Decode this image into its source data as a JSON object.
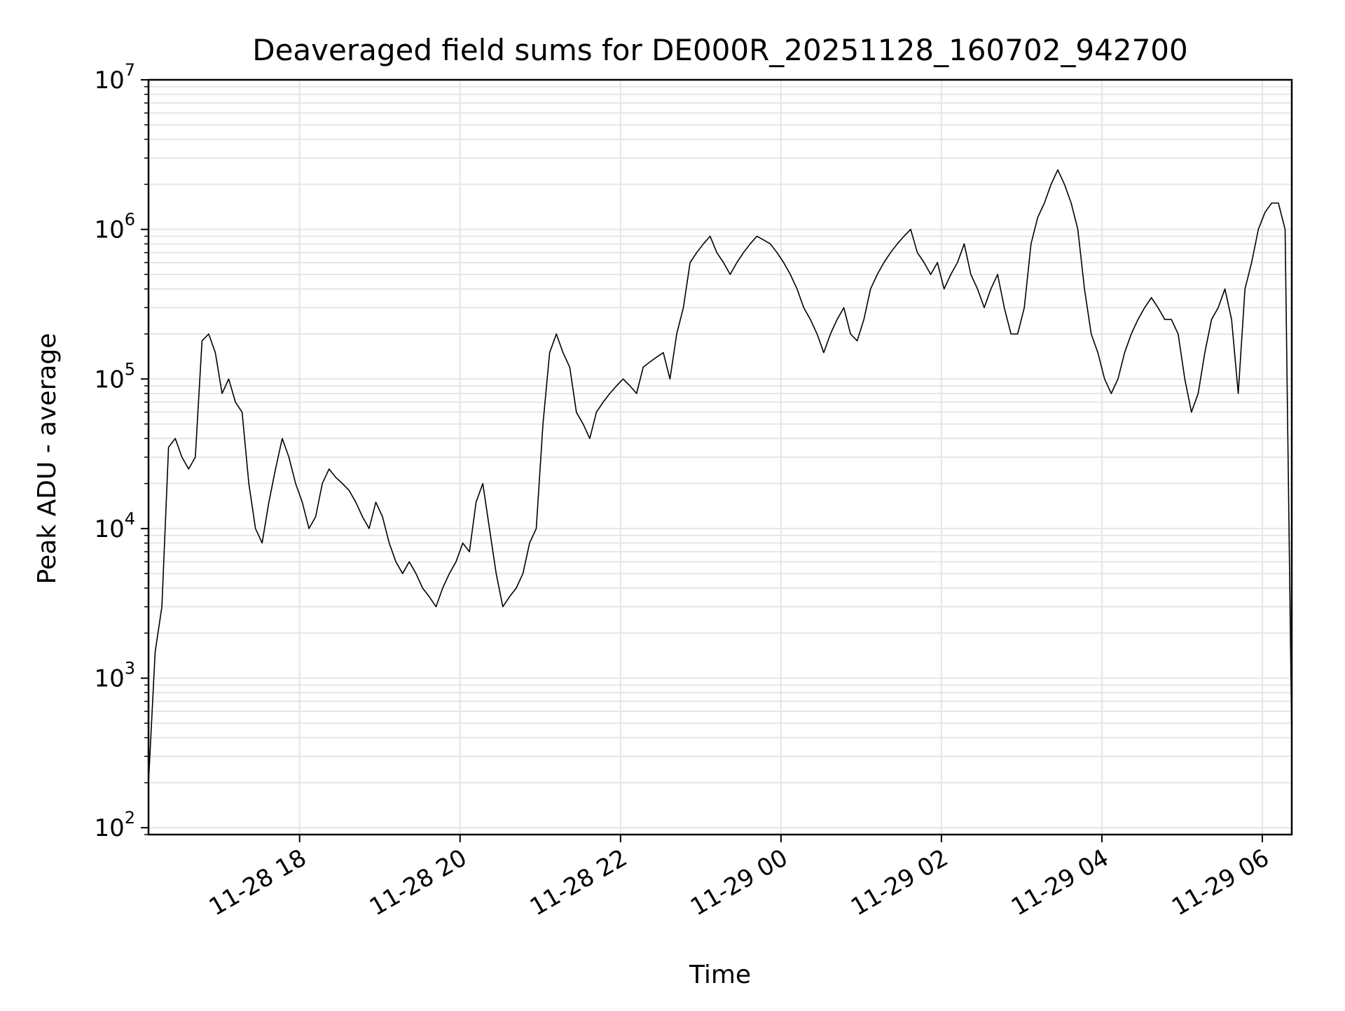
{
  "chart_data": {
    "type": "line",
    "title": "Deaveraged field sums for DE000R_20251128_160702_942700",
    "xlabel": "Time",
    "ylabel": "Peak ADU - average",
    "yscale": "log",
    "ylim": [
      90,
      10000000
    ],
    "xlim": [
      "2025-11-28 16:07",
      "2025-11-29 06:22"
    ],
    "grid": true,
    "line_color": "#000000",
    "grid_color": "#e6e6e6",
    "x_ticks": [
      {
        "t": "2025-11-28 18:00",
        "label": "11-28 18"
      },
      {
        "t": "2025-11-28 20:00",
        "label": "11-28 20"
      },
      {
        "t": "2025-11-28 22:00",
        "label": "11-28 22"
      },
      {
        "t": "2025-11-29 00:00",
        "label": "11-29 00"
      },
      {
        "t": "2025-11-29 02:00",
        "label": "11-29 02"
      },
      {
        "t": "2025-11-29 04:00",
        "label": "11-29 04"
      },
      {
        "t": "2025-11-29 06:00",
        "label": "11-29 06"
      }
    ],
    "y_ticks": [
      {
        "value": 100,
        "base": "10",
        "exp": "2"
      },
      {
        "value": 1000,
        "base": "10",
        "exp": "3"
      },
      {
        "value": 10000,
        "base": "10",
        "exp": "4"
      },
      {
        "value": 100000,
        "base": "10",
        "exp": "5"
      },
      {
        "value": 1000000,
        "base": "10",
        "exp": "6"
      },
      {
        "value": 10000000,
        "base": "10",
        "exp": "7"
      }
    ],
    "series": [
      {
        "x": [
          "2025-11-28 16:07",
          "2025-11-28 16:12",
          "2025-11-28 16:17",
          "2025-11-28 16:22",
          "2025-11-28 16:27",
          "2025-11-28 16:32",
          "2025-11-28 16:37",
          "2025-11-28 16:42",
          "2025-11-28 16:47",
          "2025-11-28 16:52",
          "2025-11-28 16:57",
          "2025-11-28 17:02",
          "2025-11-28 17:07",
          "2025-11-28 17:12",
          "2025-11-28 17:17",
          "2025-11-28 17:22",
          "2025-11-28 17:27",
          "2025-11-28 17:32",
          "2025-11-28 17:37",
          "2025-11-28 17:42",
          "2025-11-28 17:47",
          "2025-11-28 17:52",
          "2025-11-28 17:57",
          "2025-11-28 18:02",
          "2025-11-28 18:07",
          "2025-11-28 18:12",
          "2025-11-28 18:17",
          "2025-11-28 18:22",
          "2025-11-28 18:27",
          "2025-11-28 18:32",
          "2025-11-28 18:37",
          "2025-11-28 18:42",
          "2025-11-28 18:47",
          "2025-11-28 18:52",
          "2025-11-28 18:57",
          "2025-11-28 19:02",
          "2025-11-28 19:07",
          "2025-11-28 19:12",
          "2025-11-28 19:17",
          "2025-11-28 19:22",
          "2025-11-28 19:27",
          "2025-11-28 19:32",
          "2025-11-28 19:37",
          "2025-11-28 19:42",
          "2025-11-28 19:47",
          "2025-11-28 19:52",
          "2025-11-28 19:57",
          "2025-11-28 20:02",
          "2025-11-28 20:07",
          "2025-11-28 20:12",
          "2025-11-28 20:17",
          "2025-11-28 20:22",
          "2025-11-28 20:27",
          "2025-11-28 20:32",
          "2025-11-28 20:37",
          "2025-11-28 20:42",
          "2025-11-28 20:47",
          "2025-11-28 20:52",
          "2025-11-28 20:57",
          "2025-11-28 21:02",
          "2025-11-28 21:07",
          "2025-11-28 21:12",
          "2025-11-28 21:17",
          "2025-11-28 21:22",
          "2025-11-28 21:27",
          "2025-11-28 21:32",
          "2025-11-28 21:37",
          "2025-11-28 21:42",
          "2025-11-28 21:47",
          "2025-11-28 21:52",
          "2025-11-28 21:57",
          "2025-11-28 22:02",
          "2025-11-28 22:07",
          "2025-11-28 22:12",
          "2025-11-28 22:17",
          "2025-11-28 22:22",
          "2025-11-28 22:27",
          "2025-11-28 22:32",
          "2025-11-28 22:37",
          "2025-11-28 22:42",
          "2025-11-28 22:47",
          "2025-11-28 22:52",
          "2025-11-28 22:57",
          "2025-11-28 23:02",
          "2025-11-28 23:07",
          "2025-11-28 23:12",
          "2025-11-28 23:17",
          "2025-11-28 23:22",
          "2025-11-28 23:27",
          "2025-11-28 23:32",
          "2025-11-28 23:37",
          "2025-11-28 23:42",
          "2025-11-28 23:47",
          "2025-11-28 23:52",
          "2025-11-28 23:57",
          "2025-11-29 00:02",
          "2025-11-29 00:07",
          "2025-11-29 00:12",
          "2025-11-29 00:17",
          "2025-11-29 00:22",
          "2025-11-29 00:27",
          "2025-11-29 00:32",
          "2025-11-29 00:37",
          "2025-11-29 00:42",
          "2025-11-29 00:47",
          "2025-11-29 00:52",
          "2025-11-29 00:57",
          "2025-11-29 01:02",
          "2025-11-29 01:07",
          "2025-11-29 01:12",
          "2025-11-29 01:17",
          "2025-11-29 01:22",
          "2025-11-29 01:27",
          "2025-11-29 01:32",
          "2025-11-29 01:37",
          "2025-11-29 01:42",
          "2025-11-29 01:47",
          "2025-11-29 01:52",
          "2025-11-29 01:57",
          "2025-11-29 02:02",
          "2025-11-29 02:07",
          "2025-11-29 02:12",
          "2025-11-29 02:17",
          "2025-11-29 02:22",
          "2025-11-29 02:27",
          "2025-11-29 02:32",
          "2025-11-29 02:37",
          "2025-11-29 02:42",
          "2025-11-29 02:47",
          "2025-11-29 02:52",
          "2025-11-29 02:57",
          "2025-11-29 03:02",
          "2025-11-29 03:07",
          "2025-11-29 03:12",
          "2025-11-29 03:17",
          "2025-11-29 03:22",
          "2025-11-29 03:27",
          "2025-11-29 03:32",
          "2025-11-29 03:37",
          "2025-11-29 03:42",
          "2025-11-29 03:47",
          "2025-11-29 03:52",
          "2025-11-29 03:57",
          "2025-11-29 04:02",
          "2025-11-29 04:07",
          "2025-11-29 04:12",
          "2025-11-29 04:17",
          "2025-11-29 04:22",
          "2025-11-29 04:27",
          "2025-11-29 04:32",
          "2025-11-29 04:37",
          "2025-11-29 04:42",
          "2025-11-29 04:47",
          "2025-11-29 04:52",
          "2025-11-29 04:57",
          "2025-11-29 05:02",
          "2025-11-29 05:07",
          "2025-11-29 05:12",
          "2025-11-29 05:17",
          "2025-11-29 05:22",
          "2025-11-29 05:27",
          "2025-11-29 05:32",
          "2025-11-29 05:37",
          "2025-11-29 05:42",
          "2025-11-29 05:47",
          "2025-11-29 05:52",
          "2025-11-29 05:57",
          "2025-11-29 06:02",
          "2025-11-29 06:07",
          "2025-11-29 06:12",
          "2025-11-29 06:17",
          "2025-11-29 06:22"
        ],
        "y": [
          200,
          1500,
          3000,
          35000,
          40000,
          30000,
          25000,
          30000,
          180000,
          200000,
          150000,
          80000,
          100000,
          70000,
          60000,
          20000,
          10000,
          8000,
          15000,
          25000,
          40000,
          30000,
          20000,
          15000,
          10000,
          12000,
          20000,
          25000,
          22000,
          20000,
          18000,
          15000,
          12000,
          10000,
          15000,
          12000,
          8000,
          6000,
          5000,
          6000,
          5000,
          4000,
          3500,
          3000,
          4000,
          5000,
          6000,
          8000,
          7000,
          15000,
          20000,
          10000,
          5000,
          3000,
          3500,
          4000,
          5000,
          8000,
          10000,
          50000,
          150000,
          200000,
          150000,
          120000,
          60000,
          50000,
          40000,
          60000,
          70000,
          80000,
          90000,
          100000,
          90000,
          80000,
          120000,
          130000,
          140000,
          150000,
          100000,
          200000,
          300000,
          600000,
          700000,
          800000,
          900000,
          700000,
          600000,
          500000,
          600000,
          700000,
          800000,
          900000,
          850000,
          800000,
          700000,
          600000,
          500000,
          400000,
          300000,
          250000,
          200000,
          150000,
          200000,
          250000,
          300000,
          200000,
          180000,
          250000,
          400000,
          500000,
          600000,
          700000,
          800000,
          900000,
          1000000,
          700000,
          600000,
          500000,
          600000,
          400000,
          500000,
          600000,
          800000,
          500000,
          400000,
          300000,
          400000,
          500000,
          300000,
          200000,
          200000,
          300000,
          800000,
          1200000,
          1500000,
          2000000,
          2500000,
          2000000,
          1500000,
          1000000,
          400000,
          200000,
          150000,
          100000,
          80000,
          100000,
          150000,
          200000,
          250000,
          300000,
          350000,
          300000,
          250000,
          250000,
          200000,
          100000,
          60000,
          80000,
          150000,
          250000,
          300000,
          400000,
          250000,
          80000,
          400000,
          600000,
          1000000,
          1300000,
          1500000,
          1500000,
          1000000,
          400
        ]
      }
    ]
  }
}
